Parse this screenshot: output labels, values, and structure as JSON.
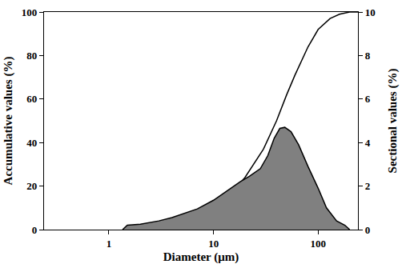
{
  "chart_data": {
    "type": "line",
    "x_label": "Diameter (μm)",
    "y_label": "Accumulative values (%)",
    "y2_label": "Sectional values (%)",
    "log": "x",
    "xlim": [
      0.24,
      240
    ],
    "xticks": [
      1,
      10,
      100
    ],
    "ylim": [
      0,
      100
    ],
    "yticks": [
      0,
      20,
      40,
      60,
      80,
      100
    ],
    "y2lim": [
      0,
      10
    ],
    "y2ticks": [
      0,
      2,
      4,
      6,
      8,
      10
    ],
    "grid": false,
    "series": [
      {
        "name": "Accumulative values",
        "type": "line",
        "color": "#000000",
        "x": [
          1.35,
          2,
          3,
          5,
          7,
          10,
          15,
          20,
          30,
          40,
          50,
          60,
          80,
          100,
          130,
          160,
          200,
          240
        ],
        "values": [
          0,
          1,
          2,
          4,
          7,
          11,
          17,
          24,
          37,
          50,
          62,
          71,
          84,
          92,
          97,
          99,
          100,
          100
        ]
      },
      {
        "name": "Sectional values",
        "type": "area",
        "axis": "y2",
        "color": "#808080",
        "x": [
          1.35,
          1.5,
          2,
          3,
          4,
          5,
          7,
          10,
          14,
          18,
          22,
          28,
          33,
          38,
          43,
          48,
          55,
          65,
          80,
          100,
          120,
          150,
          180,
          200
        ],
        "values": [
          0,
          0.2,
          0.25,
          0.4,
          0.55,
          0.7,
          0.95,
          1.35,
          1.85,
          2.2,
          2.45,
          2.8,
          3.4,
          4.2,
          4.65,
          4.7,
          4.5,
          3.9,
          2.9,
          1.9,
          1.0,
          0.4,
          0.2,
          0
        ]
      }
    ]
  }
}
